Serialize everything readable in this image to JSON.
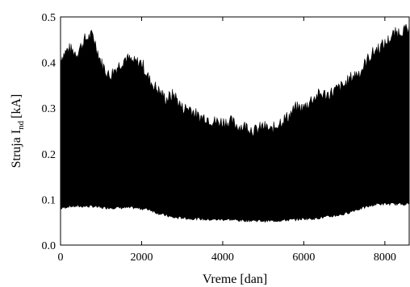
{
  "chart_data": {
    "type": "area",
    "title": "",
    "xlabel": "Vreme [dan]",
    "ylabel": {
      "main": "Struja I",
      "subscript": "nd",
      "unit": "[kA]"
    },
    "xlim": [
      0,
      8600
    ],
    "ylim": [
      0,
      0.5
    ],
    "x_ticks": [
      0,
      2000,
      4000,
      6000,
      8000
    ],
    "x_tick_labels": [
      "0",
      "2000",
      "4000",
      "6000",
      "8000"
    ],
    "y_ticks": [
      0.0,
      0.1,
      0.2,
      0.3,
      0.4,
      0.5
    ],
    "y_tick_labels": [
      "0.0",
      "0.1",
      "0.2",
      "0.3",
      "0.4",
      "0.5"
    ],
    "grid": false,
    "legend": "none",
    "fill_color": "#000000",
    "series": [
      {
        "x": [
          0,
          200,
          400,
          600,
          800,
          1000,
          1200,
          1400,
          1600,
          1800,
          2000,
          2200,
          2400,
          2600,
          2800,
          3000,
          3200,
          3400,
          3600,
          3800,
          4000,
          4200,
          4400,
          4600,
          4800,
          5000,
          5200,
          5400,
          5600,
          5800,
          6000,
          6200,
          6400,
          6600,
          6800,
          7000,
          7200,
          7400,
          7600,
          7800,
          8000,
          8200,
          8400,
          8600
        ],
        "upper": [
          0.41,
          0.43,
          0.42,
          0.45,
          0.46,
          0.4,
          0.37,
          0.39,
          0.41,
          0.4,
          0.4,
          0.36,
          0.34,
          0.32,
          0.33,
          0.3,
          0.3,
          0.28,
          0.28,
          0.27,
          0.27,
          0.27,
          0.26,
          0.26,
          0.25,
          0.26,
          0.25,
          0.27,
          0.28,
          0.3,
          0.3,
          0.32,
          0.33,
          0.33,
          0.34,
          0.35,
          0.37,
          0.38,
          0.41,
          0.43,
          0.44,
          0.46,
          0.47,
          0.47
        ],
        "lower": [
          0.08,
          0.085,
          0.085,
          0.085,
          0.085,
          0.082,
          0.082,
          0.082,
          0.082,
          0.082,
          0.08,
          0.078,
          0.07,
          0.065,
          0.06,
          0.06,
          0.058,
          0.058,
          0.056,
          0.056,
          0.056,
          0.056,
          0.054,
          0.054,
          0.054,
          0.053,
          0.053,
          0.054,
          0.055,
          0.056,
          0.058,
          0.058,
          0.06,
          0.062,
          0.065,
          0.068,
          0.075,
          0.08,
          0.085,
          0.09,
          0.09,
          0.09,
          0.09,
          0.09
        ]
      }
    ]
  }
}
